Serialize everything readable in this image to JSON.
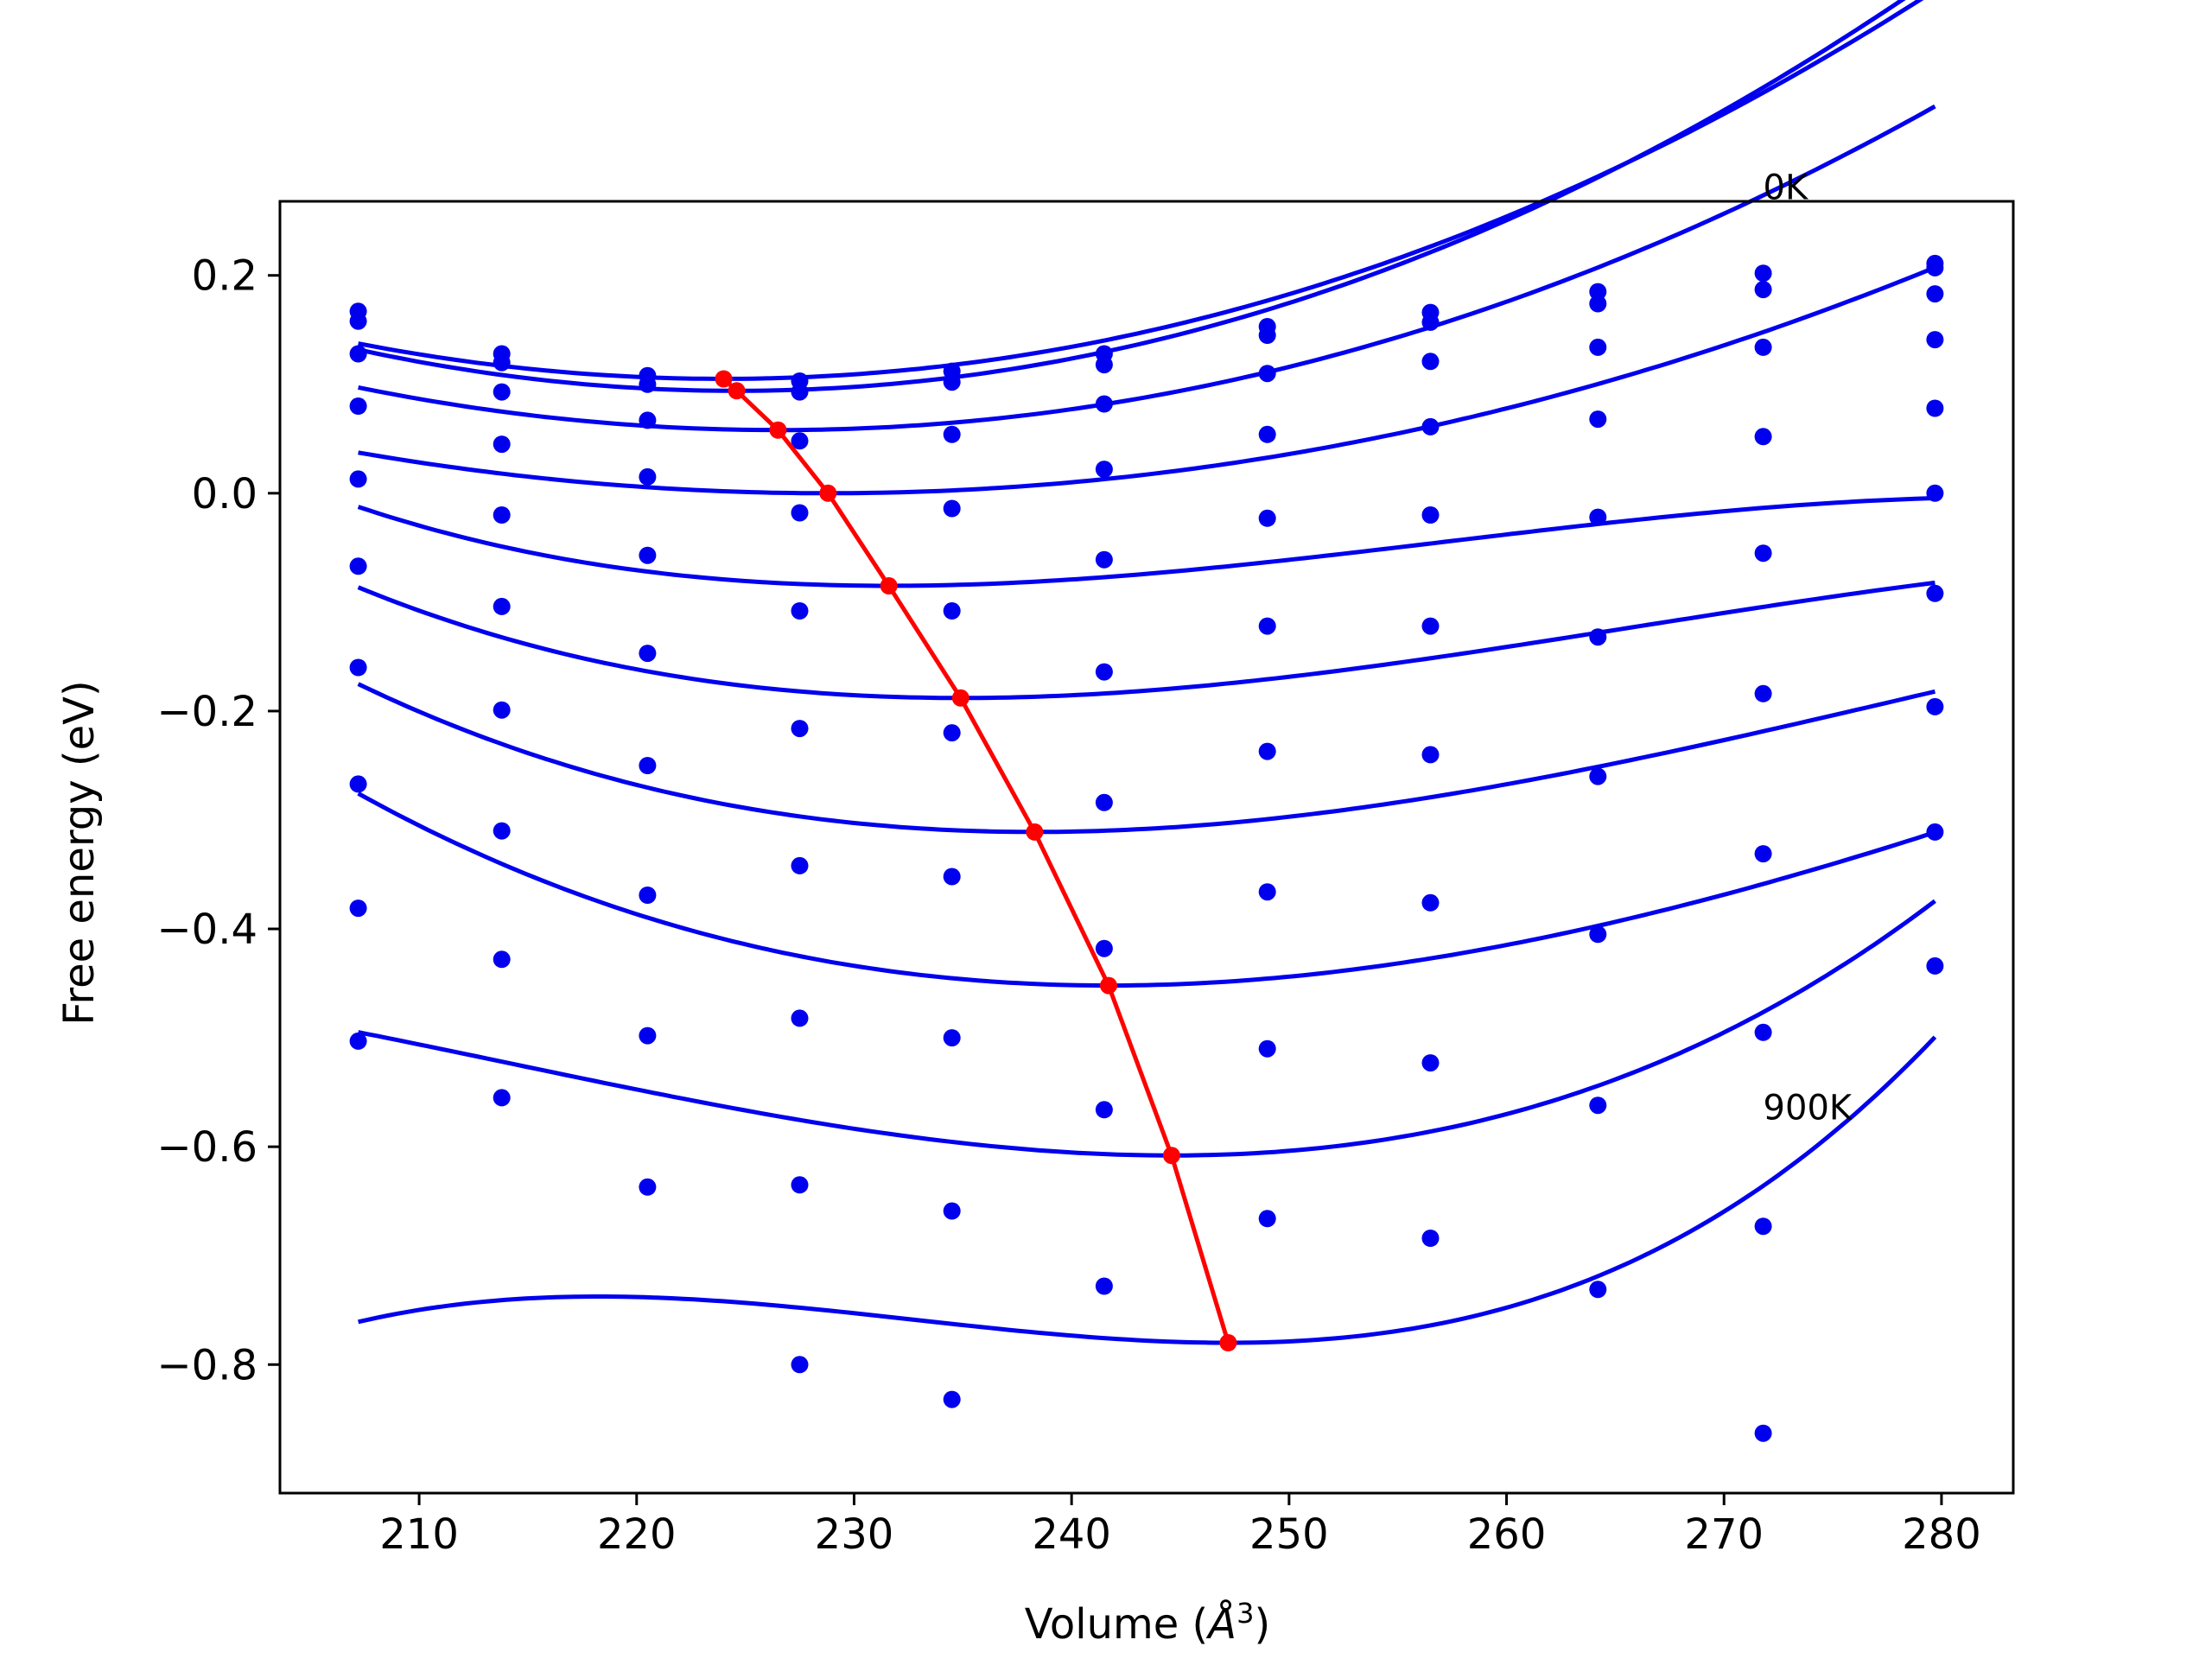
{
  "chart_data": {
    "type": "scatter",
    "title": "",
    "xlabel": "Volume (",
    "xlabel_unit": "Å",
    "xlabel_sup": "3",
    "xlabel_close": ")",
    "ylabel": "Free energy (eV)",
    "xlim": [
      203.6,
      283.3
    ],
    "ylim": [
      -0.918,
      0.268
    ],
    "xticks": [
      210,
      220,
      230,
      240,
      250,
      260,
      270,
      280
    ],
    "xtick_labels": [
      "210",
      "220",
      "230",
      "240",
      "250",
      "260",
      "270",
      "280"
    ],
    "yticks": [
      0.2,
      0.0,
      -0.2,
      -0.4,
      -0.6,
      -0.8
    ],
    "ytick_labels": [
      "0.2",
      "0.0",
      "−0.2",
      "−0.4",
      "−0.6",
      "−0.8"
    ],
    "grid": false,
    "annotations": [
      {
        "text": "0K",
        "x": 271.8,
        "y": 0.27
      },
      {
        "text": "900K",
        "x": 271.8,
        "y": -0.575
      }
    ],
    "x": [
      207.2,
      213.8,
      220.5,
      227.5,
      234.5,
      241.5,
      249.0,
      256.5,
      264.2,
      271.8,
      279.7
    ],
    "points": [
      [
        0.167,
        0.128,
        0.108,
        0.103,
        0.112,
        0.128,
        0.153,
        0.166,
        0.185,
        0.202,
        0.211
      ],
      [
        0.158,
        0.12,
        0.1,
        0.093,
        0.102,
        0.118,
        0.145,
        0.157,
        0.174,
        0.187,
        0.207
      ],
      [
        0.128,
        0.093,
        0.067,
        0.048,
        0.054,
        0.082,
        0.11,
        0.121,
        0.134,
        0.134,
        0.183
      ],
      [
        0.08,
        0.045,
        0.015,
        -0.018,
        -0.014,
        0.022,
        0.054,
        0.061,
        0.068,
        0.052,
        0.141
      ],
      [
        0.013,
        -0.02,
        -0.057,
        -0.108,
        -0.108,
        -0.061,
        -0.023,
        -0.02,
        -0.022,
        -0.055,
        0.078
      ],
      [
        -0.067,
        -0.104,
        -0.147,
        -0.216,
        -0.22,
        -0.164,
        -0.122,
        -0.122,
        -0.132,
        -0.184,
        0.0
      ],
      [
        -0.16,
        -0.199,
        -0.25,
        -0.342,
        -0.352,
        -0.284,
        -0.237,
        -0.24,
        -0.26,
        -0.331,
        -0.092
      ],
      [
        -0.267,
        -0.31,
        -0.369,
        -0.482,
        -0.5,
        -0.418,
        -0.366,
        -0.376,
        -0.405,
        -0.495,
        -0.196
      ],
      [
        -0.381,
        -0.428,
        -0.498,
        -0.635,
        -0.659,
        -0.566,
        -0.51,
        -0.523,
        -0.562,
        -0.673,
        -0.311
      ],
      [
        -0.503,
        -0.555,
        -0.637,
        -0.8,
        -0.832,
        -0.728,
        -0.666,
        -0.684,
        -0.731,
        -0.863,
        -0.434
      ]
    ],
    "fits": [
      {
        "vmin": 224.0,
        "emin": 0.105,
        "a": 0.000115,
        "b": 0.0
      },
      {
        "vmin": 224.6,
        "emin": 0.094,
        "a": 0.000125,
        "b": 0.0
      },
      {
        "vmin": 226.5,
        "emin": 0.058,
        "a": 0.000105,
        "b": 0.0
      },
      {
        "vmin": 228.8,
        "emin": 0.0,
        "a": 8e-05,
        "b": 0.0
      },
      {
        "vmin": 231.6,
        "emin": -0.085,
        "a": 9.25e-05,
        "b": -1.2e-06
      },
      {
        "vmin": 234.9,
        "emin": -0.188,
        "a": 0.000102,
        "b": -1.1e-06
      },
      {
        "vmin": 238.3,
        "emin": -0.311,
        "a": 0.0001125,
        "b": -9e-07
      },
      {
        "vmin": 241.7,
        "emin": -0.452,
        "a": 0.000124,
        "b": -7e-07
      },
      {
        "vmin": 244.6,
        "emin": -0.608,
        "a": 0.000137,
        "b": 1.5e-06
      },
      {
        "vmin": 247.2,
        "emin": -0.78,
        "a": 0.000152,
        "b": 3.5e-06
      }
    ],
    "fit_xrange": [
      207.2,
      279.7
    ],
    "minima": {
      "x": [
        224.0,
        224.6,
        226.5,
        228.8,
        231.6,
        234.9,
        238.3,
        241.7,
        244.6,
        247.2
      ],
      "y": [
        0.105,
        0.094,
        0.058,
        0.0,
        -0.085,
        -0.188,
        -0.311,
        -0.452,
        -0.608,
        -0.78
      ]
    },
    "colors": {
      "points": "#0000ee",
      "fits": "#0000ee",
      "minima": "#ff0000",
      "axes": "#000000"
    }
  }
}
